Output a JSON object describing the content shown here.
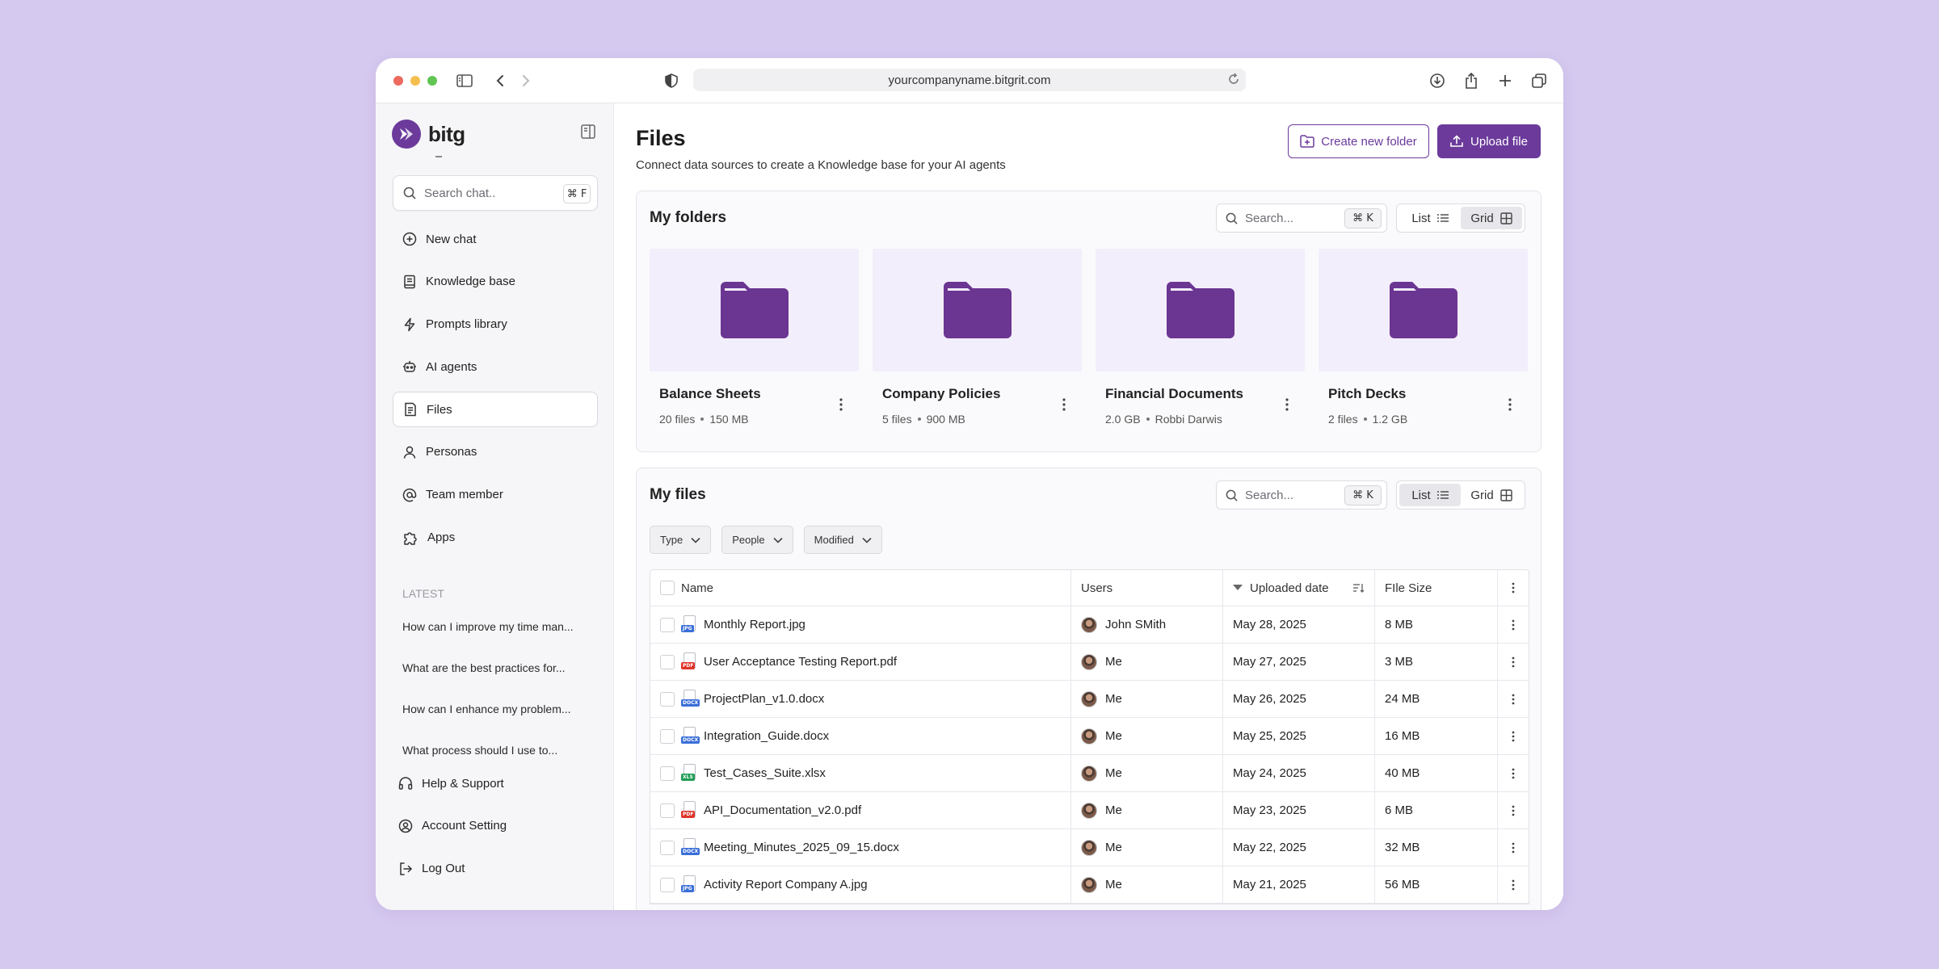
{
  "browser": {
    "url": "yourcompanyname.bitgrit.com"
  },
  "brand": {
    "name": "bitg"
  },
  "sidebar": {
    "search_placeholder": "Search chat..",
    "search_shortcut": "⌘ F",
    "nav": [
      {
        "label": "New chat",
        "icon": "plus-circle-icon"
      },
      {
        "label": "Knowledge base",
        "icon": "book-icon"
      },
      {
        "label": "Prompts library",
        "icon": "bolt-icon"
      },
      {
        "label": "AI agents",
        "icon": "robot-icon"
      },
      {
        "label": "Files",
        "icon": "file-icon",
        "active": true
      },
      {
        "label": "Personas",
        "icon": "user-icon"
      },
      {
        "label": "Team member",
        "icon": "at-icon"
      },
      {
        "label": "Apps",
        "icon": "puzzle-icon"
      }
    ],
    "latest_label": "LATEST",
    "recent": [
      "How can I improve my time man...",
      "What are the best practices for...",
      "How can I enhance my problem...",
      "What process should I use to..."
    ],
    "bottom": [
      {
        "label": "Help & Support",
        "icon": "headphones-icon"
      },
      {
        "label": "Account Setting",
        "icon": "user-circle-icon"
      },
      {
        "label": "Log Out",
        "icon": "logout-icon"
      }
    ]
  },
  "header": {
    "title": "Files",
    "subtitle": "Connect data sources to create a Knowledge base for your AI agents",
    "create_folder": "Create new folder",
    "upload": "Upload file"
  },
  "folders": {
    "title": "My folders",
    "search_placeholder": "Search...",
    "shortcut": "⌘ K",
    "view_list": "List",
    "view_grid": "Grid",
    "items": [
      {
        "name": "Balance Sheets",
        "meta1": "20 files",
        "meta2": "150 MB"
      },
      {
        "name": "Company Policies",
        "meta1": "5 files",
        "meta2": "900 MB"
      },
      {
        "name": "Financial Documents",
        "meta1": "2.0 GB",
        "meta2": "Robbi Darwis"
      },
      {
        "name": "Pitch Decks",
        "meta1": "2 files",
        "meta2": "1.2 GB"
      }
    ]
  },
  "files": {
    "title": "My files",
    "search_placeholder": "Search...",
    "shortcut": "⌘ K",
    "view_list": "List",
    "view_grid": "Grid",
    "filters": [
      "Type",
      "People",
      "Modified"
    ],
    "columns": {
      "name": "Name",
      "users": "Users",
      "date": "Uploaded date",
      "size": "FIle Size"
    },
    "rows": [
      {
        "name": "Monthly Report.jpg",
        "type": "JPG",
        "color": "#3b6fd8",
        "user": "John SMith",
        "date": "May 28, 2025",
        "size": "8 MB"
      },
      {
        "name": "User Acceptance Testing Report.pdf",
        "type": "PDF",
        "color": "#e0352b",
        "user": "Me",
        "date": "May 27, 2025",
        "size": "3 MB"
      },
      {
        "name": "ProjectPlan_v1.0.docx",
        "type": "DOCX",
        "color": "#3b6fd8",
        "user": "Me",
        "date": "May 26, 2025",
        "size": "24 MB"
      },
      {
        "name": "Integration_Guide.docx",
        "type": "DOCX",
        "color": "#3b6fd8",
        "user": "Me",
        "date": "May 25, 2025",
        "size": "16 MB"
      },
      {
        "name": "Test_Cases_Suite.xlsx",
        "type": "XLS",
        "color": "#1f9d55",
        "user": "Me",
        "date": "May 24, 2025",
        "size": "40 MB"
      },
      {
        "name": "API_Documentation_v2.0.pdf",
        "type": "PDF",
        "color": "#e0352b",
        "user": "Me",
        "date": "May 23, 2025",
        "size": "6 MB"
      },
      {
        "name": "Meeting_Minutes_2025_09_15.docx",
        "type": "DOCX",
        "color": "#3b6fd8",
        "user": "Me",
        "date": "May 22, 2025",
        "size": "32 MB"
      },
      {
        "name": "Activity Report Company A.jpg",
        "type": "JPG",
        "color": "#3b6fd8",
        "user": "Me",
        "date": "May 21, 2025",
        "size": "56 MB"
      }
    ]
  },
  "colors": {
    "accent": "#6b3a9b",
    "background": "#d5c9ef",
    "folder_bg": "#f3eefb"
  }
}
